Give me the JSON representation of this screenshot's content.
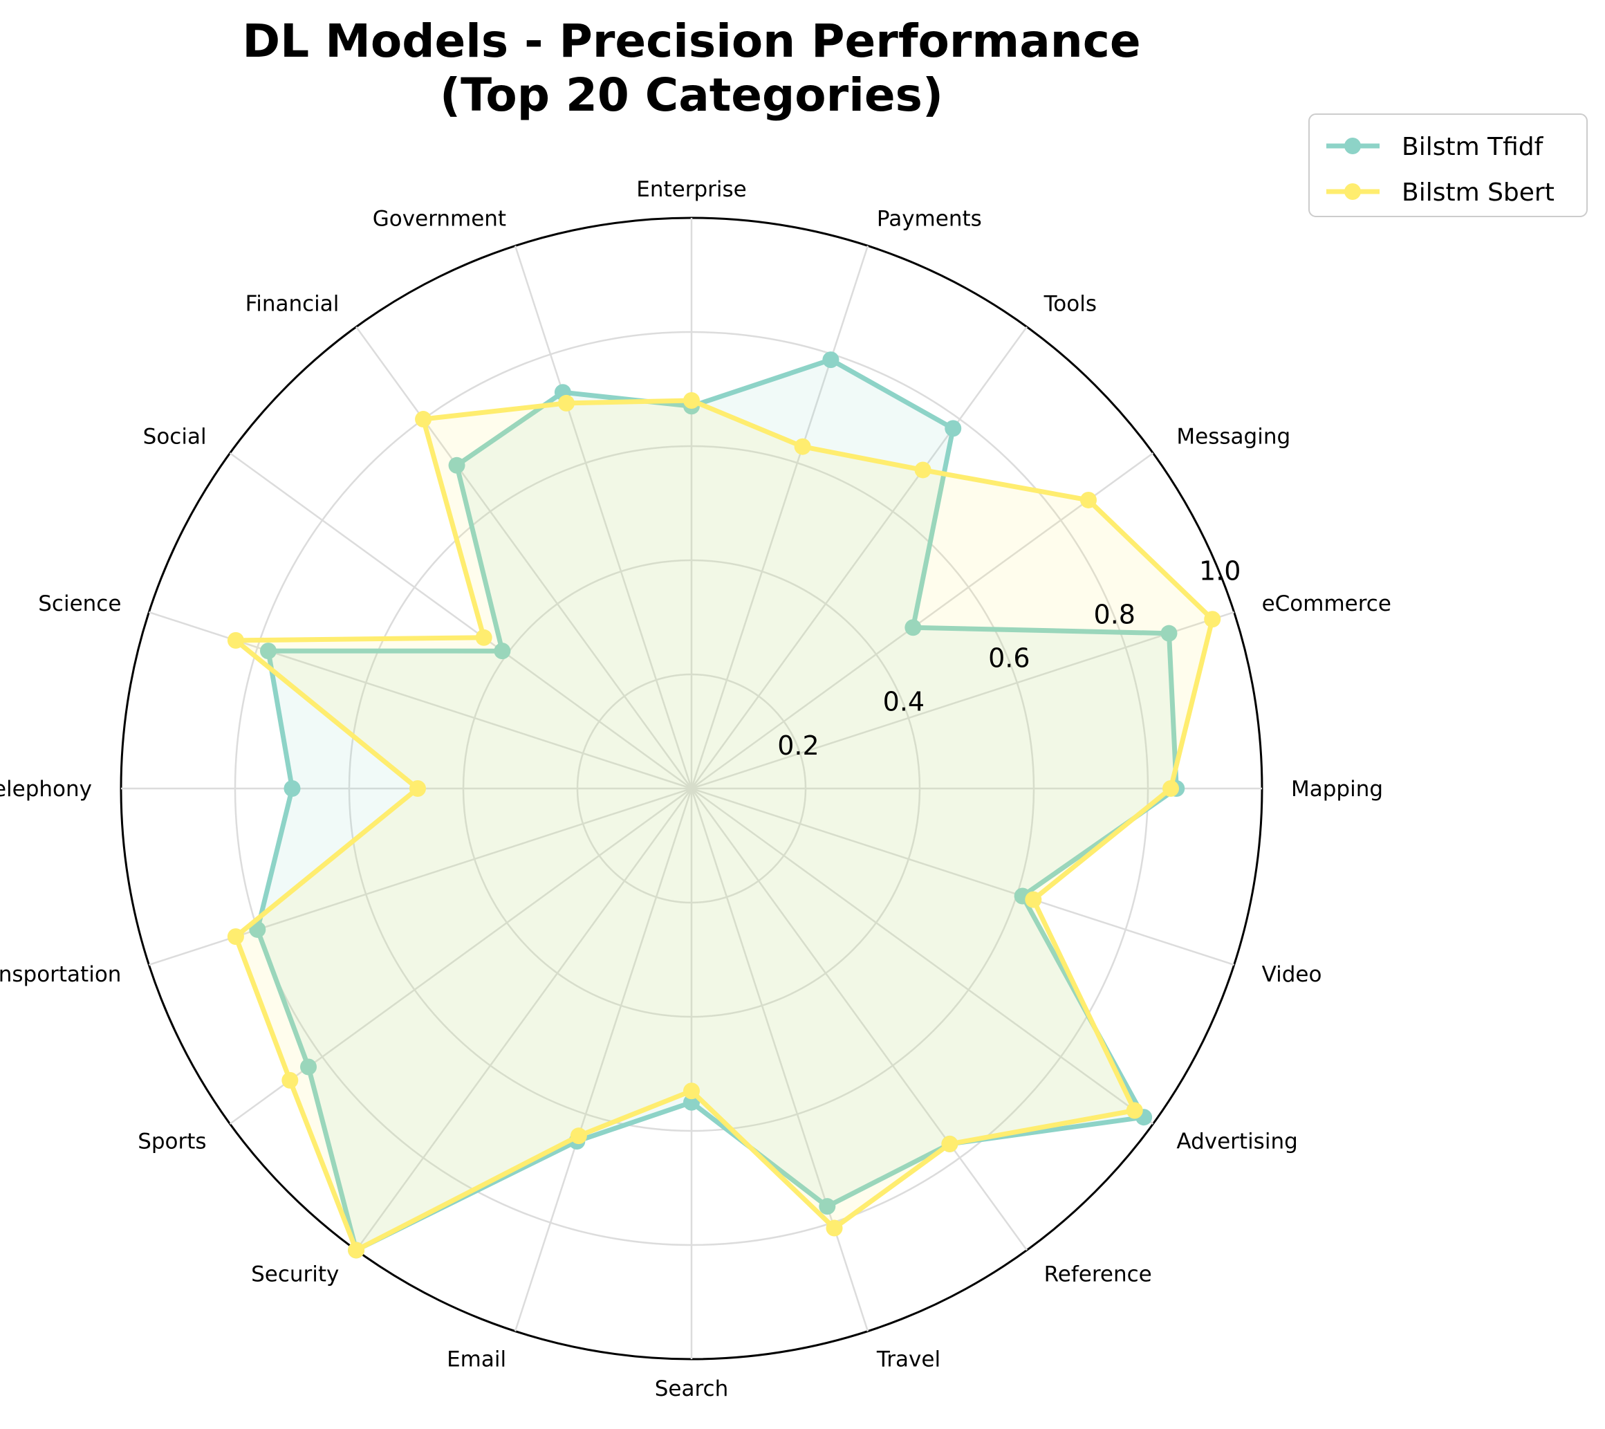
{
  "chart_data": {
    "type": "radar",
    "title_lines": [
      "DL Models - Precision Performance",
      "(Top 20 Categories)"
    ],
    "categories": [
      "Mapping",
      "eCommerce",
      "Messaging",
      "Tools",
      "Payments",
      "Enterprise",
      "Government",
      "Financial",
      "Social",
      "Science",
      "Telephony",
      "Transportation",
      "Sports",
      "Security",
      "Email",
      "Search",
      "Travel",
      "Reference",
      "Advertising",
      "Video"
    ],
    "radial_ticks": [
      "0.2",
      "0.4",
      "0.6",
      "0.8",
      "1.0"
    ],
    "rlim": [
      0,
      1.0
    ],
    "grid": true,
    "legend_position": "top-right",
    "series": [
      {
        "name": "Bilstm Tfidf",
        "color": "#8dd3c7",
        "values": [
          0.85,
          0.88,
          0.48,
          0.78,
          0.79,
          0.67,
          0.73,
          0.7,
          0.41,
          0.78,
          0.7,
          0.8,
          0.83,
          1.0,
          0.65,
          0.55,
          0.77,
          0.77,
          0.98,
          0.61
        ]
      },
      {
        "name": "Bilstm Sbert",
        "color": "#ffed6f",
        "values": [
          0.84,
          0.96,
          0.86,
          0.69,
          0.63,
          0.68,
          0.71,
          0.8,
          0.45,
          0.84,
          0.48,
          0.84,
          0.87,
          1.0,
          0.64,
          0.53,
          0.81,
          0.77,
          0.96,
          0.63
        ]
      }
    ]
  }
}
